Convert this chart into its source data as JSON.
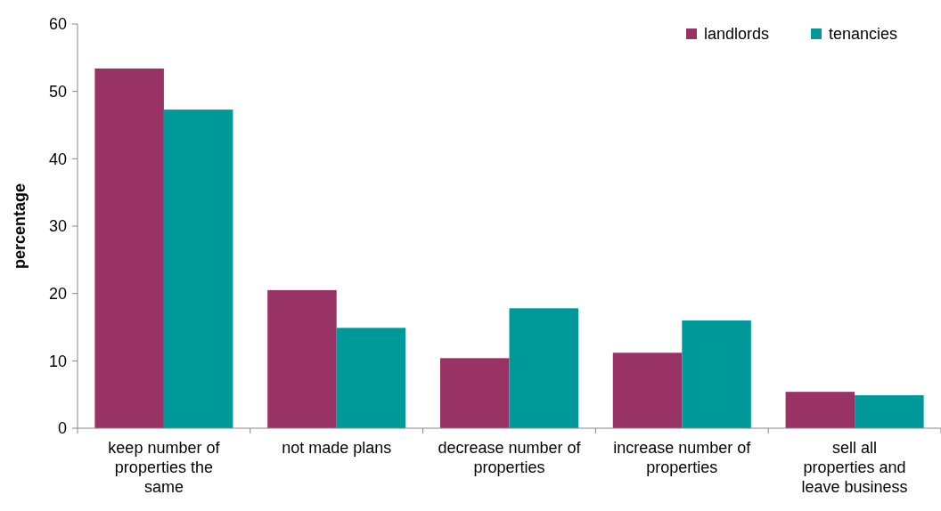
{
  "chart_data": {
    "type": "bar",
    "ylabel": "percentage",
    "categories": [
      "keep number of properties the same",
      "not made plans",
      "decrease number of properties",
      "increase number of properties",
      "sell all properties and leave business"
    ],
    "series": [
      {
        "name": "landlords",
        "color": "#993366",
        "values": [
          53.4,
          20.5,
          10.4,
          11.2,
          5.4
        ]
      },
      {
        "name": "tenancies",
        "color": "#009999",
        "values": [
          47.3,
          14.9,
          17.8,
          16.0,
          4.9
        ]
      }
    ],
    "ylim": [
      0,
      60
    ],
    "yticks": [
      0,
      10,
      20,
      30,
      40,
      50,
      60
    ],
    "grid": false,
    "legend": "top right"
  }
}
